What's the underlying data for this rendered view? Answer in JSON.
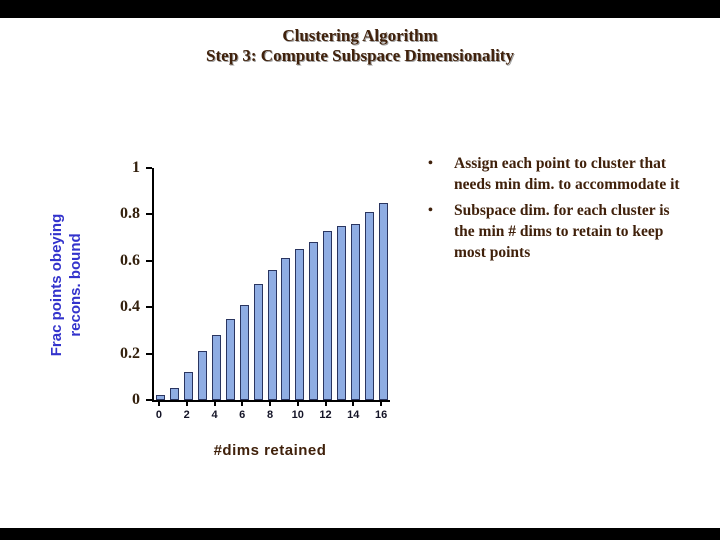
{
  "slide": {
    "title_line1": "Clustering Algorithm",
    "title_line2": "Step 3: Compute Subspace Dimensionality",
    "bullet_char": "•",
    "bullets": [
      "Assign each point to cluster that needs min dim. to accommodate it",
      "Subspace dim. for each cluster is the min # dims to retain to keep most points"
    ]
  },
  "chart_data": {
    "type": "bar",
    "title": "",
    "xlabel": "#dims retained",
    "ylabel": "Frac points obeying recons. bound",
    "ylabel_line1": "Frac points obeying",
    "ylabel_line2": "recons. bound",
    "x": [
      0,
      1,
      2,
      3,
      4,
      5,
      6,
      7,
      8,
      9,
      10,
      11,
      12,
      13,
      14,
      15,
      16
    ],
    "values": [
      0.02,
      0.05,
      0.12,
      0.21,
      0.28,
      0.35,
      0.41,
      0.5,
      0.56,
      0.61,
      0.65,
      0.68,
      0.73,
      0.75,
      0.76,
      0.81,
      0.85
    ],
    "ylim": [
      0,
      1
    ],
    "yticks": [
      0,
      0.2,
      0.4,
      0.6,
      0.8,
      1
    ],
    "ytick_labels": [
      "0",
      "0.2",
      "0.4",
      "0.6",
      "0.8",
      "1"
    ],
    "xticks": [
      0,
      2,
      4,
      6,
      8,
      10,
      12,
      14,
      16
    ],
    "grid": false,
    "legend": false,
    "bar_fill": "#8fade3",
    "bar_stroke": "#2a3560"
  },
  "colors": {
    "title": "#40210b",
    "bullet_text": "#40210b",
    "ylabel": "#3333cc",
    "xlabel": "#40210b",
    "ytick": "#33200d",
    "xtick": "#141427",
    "axis": "#000000",
    "background": "#ffffff",
    "frame_bars": "#000000"
  }
}
